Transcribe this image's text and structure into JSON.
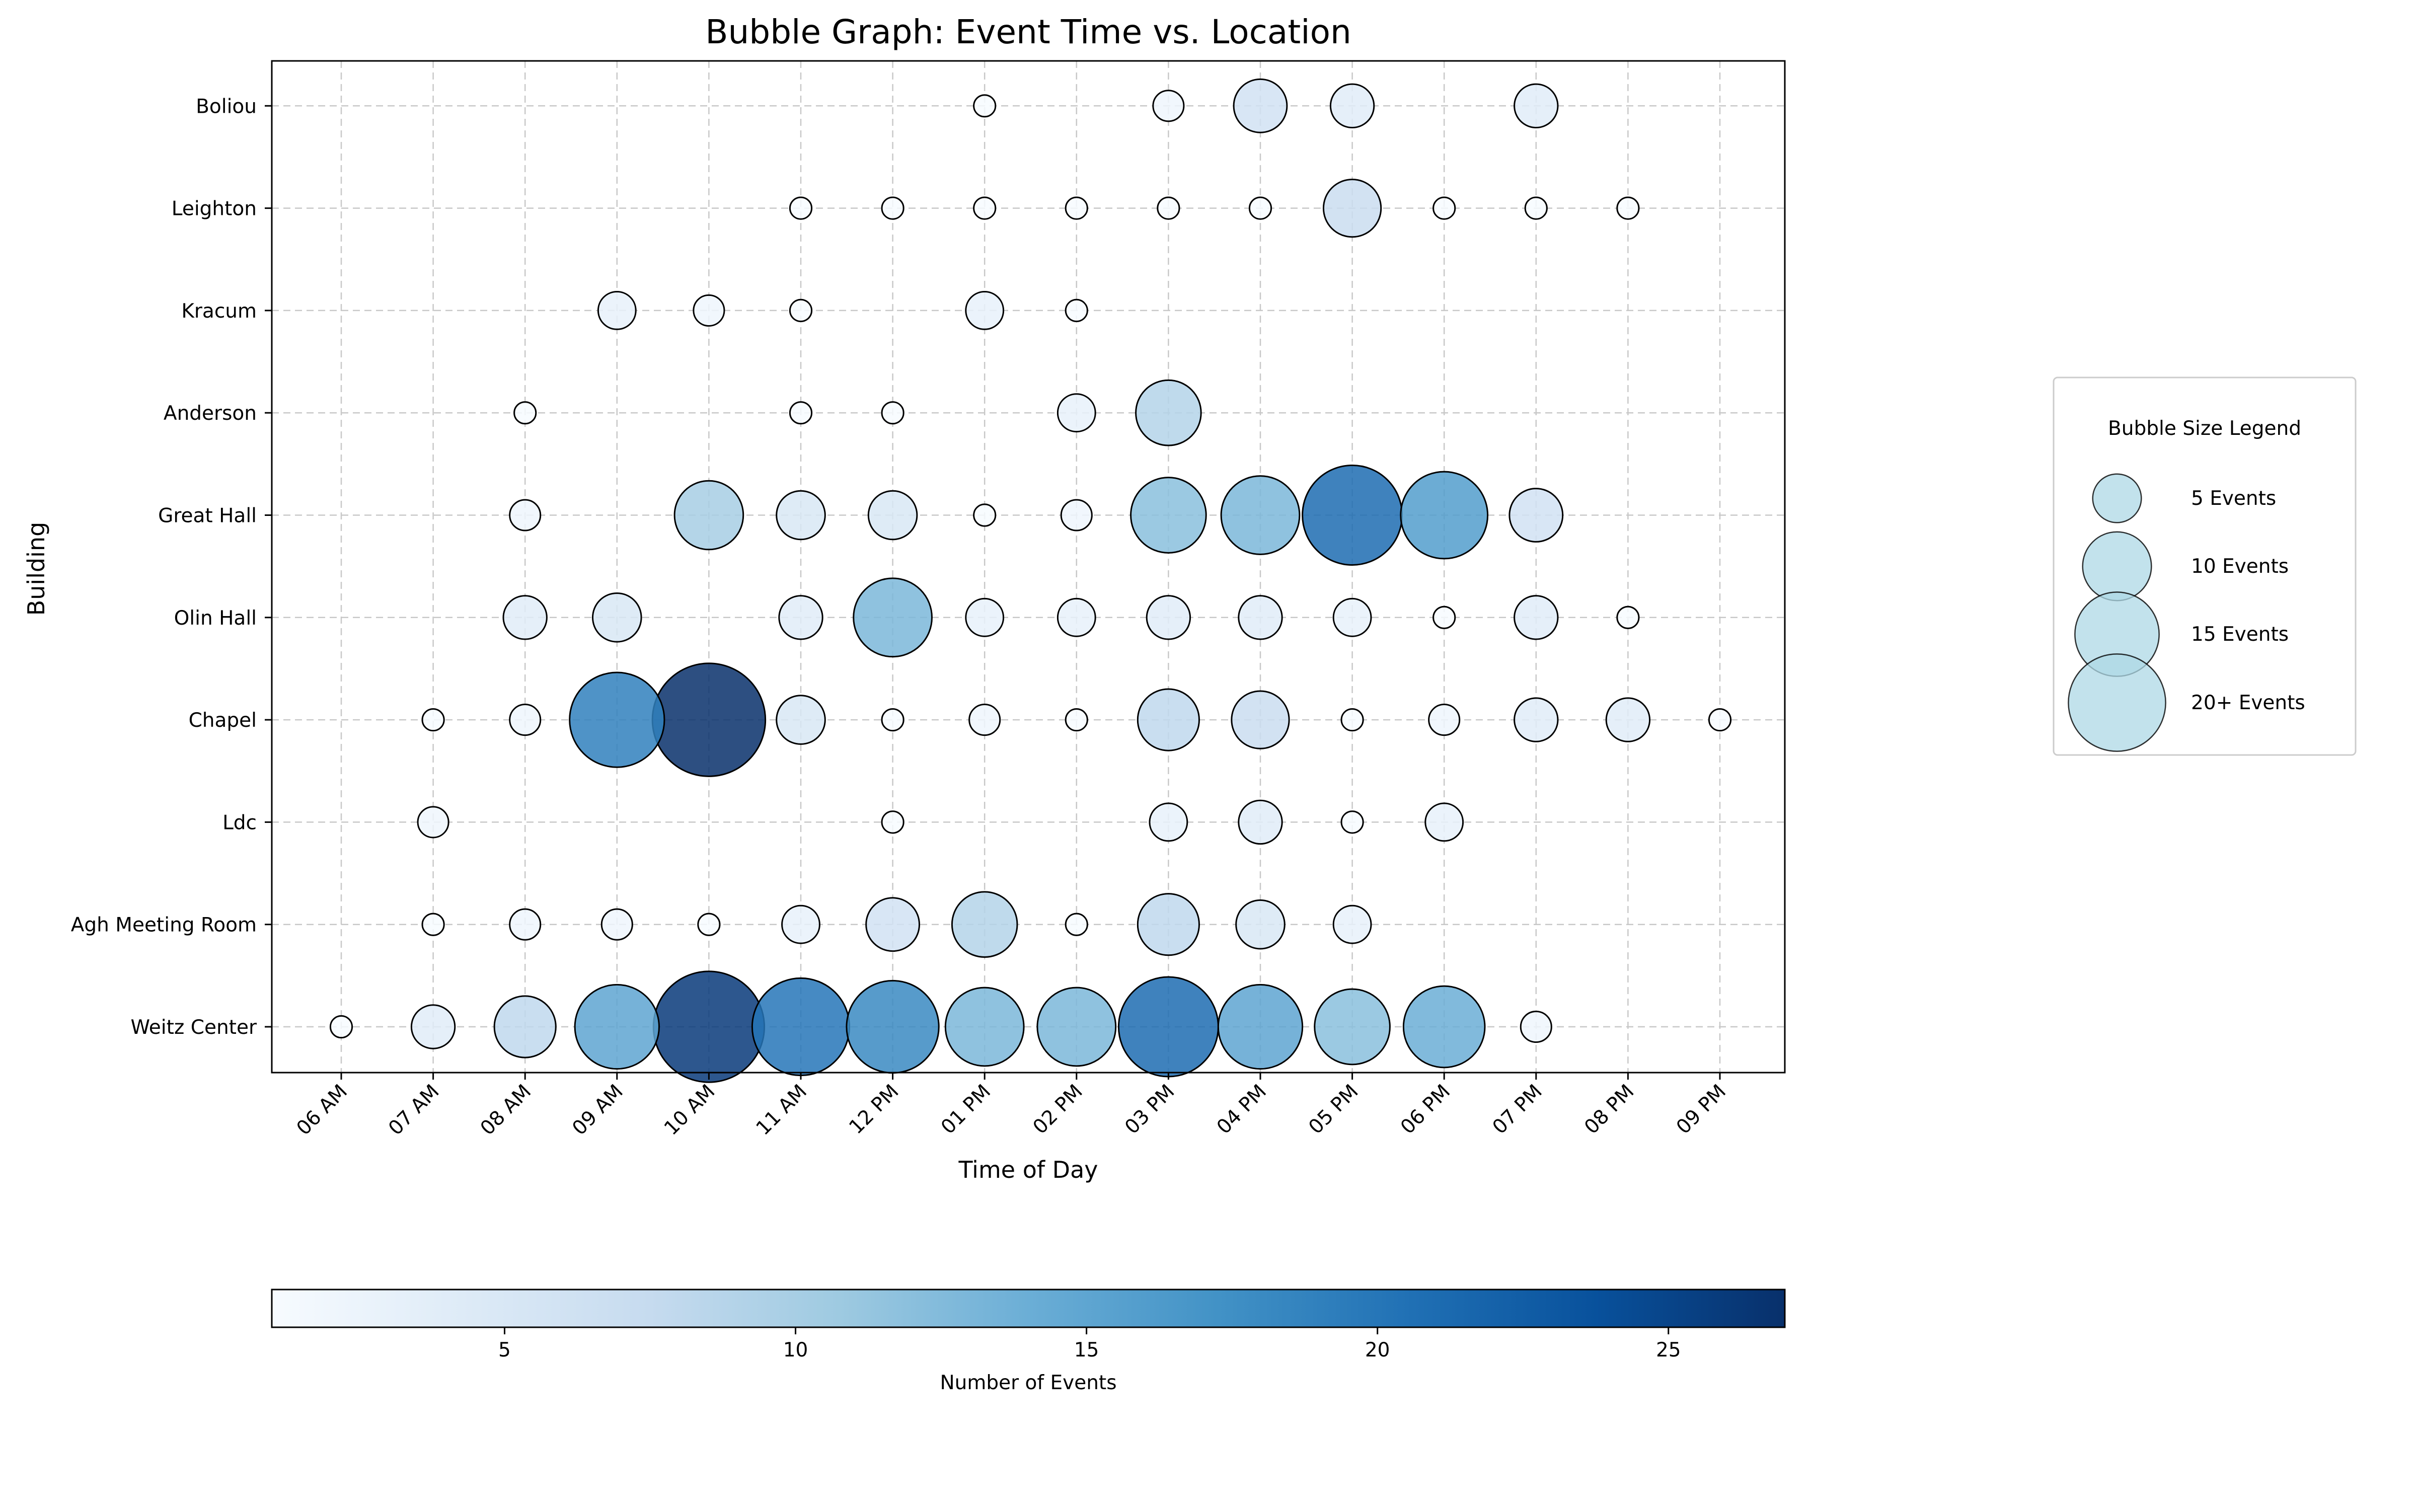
{
  "chart_data": {
    "type": "scatter",
    "title": "Bubble Graph: Event Time vs. Location",
    "xlabel": "Time of Day",
    "ylabel": "Building",
    "x_categories": [
      "06 AM",
      "07 AM",
      "08 AM",
      "09 AM",
      "10 AM",
      "11 AM",
      "12 PM",
      "01 PM",
      "02 PM",
      "03 PM",
      "04 PM",
      "05 PM",
      "06 PM",
      "07 PM",
      "08 PM",
      "09 PM"
    ],
    "y_categories": [
      "Weitz Center",
      "Agh Meeting Room",
      "Ldc",
      "Chapel",
      "Olin Hall",
      "Great Hall",
      "Anderson",
      "Kracum",
      "Leighton",
      "Boliou"
    ],
    "grid": true,
    "colormap": "Blues",
    "color_range": [
      1,
      27
    ],
    "colorbar": {
      "label": "Number of Events",
      "ticks": [
        5,
        10,
        15,
        20,
        25
      ],
      "stops": [
        "#f7fbff",
        "#deebf7",
        "#c6dbef",
        "#9ecae1",
        "#6baed6",
        "#4292c6",
        "#2171b5",
        "#08519c",
        "#08306b"
      ]
    },
    "size_legend": {
      "title": "Bubble Size Legend",
      "color": "#add8e6",
      "entries": [
        {
          "label": "5 Events",
          "value": 5
        },
        {
          "label": "10 Events",
          "value": 10
        },
        {
          "label": "15 Events",
          "value": 15
        },
        {
          "label": "20+ Events",
          "value": 20
        }
      ]
    },
    "points": [
      {
        "building": "Boliou",
        "time": "01 PM",
        "count": 1
      },
      {
        "building": "Boliou",
        "time": "03 PM",
        "count": 2
      },
      {
        "building": "Boliou",
        "time": "04 PM",
        "count": 6
      },
      {
        "building": "Boliou",
        "time": "05 PM",
        "count": 4
      },
      {
        "building": "Boliou",
        "time": "07 PM",
        "count": 4
      },
      {
        "building": "Leighton",
        "time": "11 AM",
        "count": 1
      },
      {
        "building": "Leighton",
        "time": "12 PM",
        "count": 1
      },
      {
        "building": "Leighton",
        "time": "01 PM",
        "count": 1
      },
      {
        "building": "Leighton",
        "time": "02 PM",
        "count": 1
      },
      {
        "building": "Leighton",
        "time": "03 PM",
        "count": 1
      },
      {
        "building": "Leighton",
        "time": "04 PM",
        "count": 1
      },
      {
        "building": "Leighton",
        "time": "05 PM",
        "count": 7
      },
      {
        "building": "Leighton",
        "time": "06 PM",
        "count": 1
      },
      {
        "building": "Leighton",
        "time": "07 PM",
        "count": 1
      },
      {
        "building": "Leighton",
        "time": "08 PM",
        "count": 1
      },
      {
        "building": "Kracum",
        "time": "09 AM",
        "count": 3
      },
      {
        "building": "Kracum",
        "time": "10 AM",
        "count": 2
      },
      {
        "building": "Kracum",
        "time": "11 AM",
        "count": 1
      },
      {
        "building": "Kracum",
        "time": "01 PM",
        "count": 3
      },
      {
        "building": "Kracum",
        "time": "02 PM",
        "count": 1
      },
      {
        "building": "Anderson",
        "time": "08 AM",
        "count": 1
      },
      {
        "building": "Anderson",
        "time": "11 AM",
        "count": 1
      },
      {
        "building": "Anderson",
        "time": "12 PM",
        "count": 1
      },
      {
        "building": "Anderson",
        "time": "02 PM",
        "count": 3
      },
      {
        "building": "Anderson",
        "time": "03 PM",
        "count": 9
      },
      {
        "building": "Great Hall",
        "time": "08 AM",
        "count": 2
      },
      {
        "building": "Great Hall",
        "time": "10 AM",
        "count": 10
      },
      {
        "building": "Great Hall",
        "time": "11 AM",
        "count": 5
      },
      {
        "building": "Great Hall",
        "time": "12 PM",
        "count": 5
      },
      {
        "building": "Great Hall",
        "time": "01 PM",
        "count": 1
      },
      {
        "building": "Great Hall",
        "time": "02 PM",
        "count": 2
      },
      {
        "building": "Great Hall",
        "time": "03 PM",
        "count": 12
      },
      {
        "building": "Great Hall",
        "time": "04 PM",
        "count": 13
      },
      {
        "building": "Great Hall",
        "time": "05 PM",
        "count": 21
      },
      {
        "building": "Great Hall",
        "time": "06 PM",
        "count": 16
      },
      {
        "building": "Great Hall",
        "time": "07 PM",
        "count": 6
      },
      {
        "building": "Olin Hall",
        "time": "08 AM",
        "count": 4
      },
      {
        "building": "Olin Hall",
        "time": "09 AM",
        "count": 5
      },
      {
        "building": "Olin Hall",
        "time": "11 AM",
        "count": 4
      },
      {
        "building": "Olin Hall",
        "time": "12 PM",
        "count": 13
      },
      {
        "building": "Olin Hall",
        "time": "01 PM",
        "count": 3
      },
      {
        "building": "Olin Hall",
        "time": "02 PM",
        "count": 3
      },
      {
        "building": "Olin Hall",
        "time": "03 PM",
        "count": 4
      },
      {
        "building": "Olin Hall",
        "time": "04 PM",
        "count": 4
      },
      {
        "building": "Olin Hall",
        "time": "05 PM",
        "count": 3
      },
      {
        "building": "Olin Hall",
        "time": "06 PM",
        "count": 1
      },
      {
        "building": "Olin Hall",
        "time": "07 PM",
        "count": 4
      },
      {
        "building": "Olin Hall",
        "time": "08 PM",
        "count": 1
      },
      {
        "building": "Chapel",
        "time": "07 AM",
        "count": 1
      },
      {
        "building": "Chapel",
        "time": "08 AM",
        "count": 2
      },
      {
        "building": "Chapel",
        "time": "09 AM",
        "count": 19
      },
      {
        "building": "Chapel",
        "time": "10 AM",
        "count": 27
      },
      {
        "building": "Chapel",
        "time": "11 AM",
        "count": 5
      },
      {
        "building": "Chapel",
        "time": "12 PM",
        "count": 1
      },
      {
        "building": "Chapel",
        "time": "01 PM",
        "count": 2
      },
      {
        "building": "Chapel",
        "time": "02 PM",
        "count": 1
      },
      {
        "building": "Chapel",
        "time": "03 PM",
        "count": 8
      },
      {
        "building": "Chapel",
        "time": "04 PM",
        "count": 7
      },
      {
        "building": "Chapel",
        "time": "05 PM",
        "count": 1
      },
      {
        "building": "Chapel",
        "time": "06 PM",
        "count": 2
      },
      {
        "building": "Chapel",
        "time": "07 PM",
        "count": 4
      },
      {
        "building": "Chapel",
        "time": "08 PM",
        "count": 4
      },
      {
        "building": "Chapel",
        "time": "09 PM",
        "count": 1
      },
      {
        "building": "Ldc",
        "time": "07 AM",
        "count": 2
      },
      {
        "building": "Ldc",
        "time": "12 PM",
        "count": 1
      },
      {
        "building": "Ldc",
        "time": "03 PM",
        "count": 3
      },
      {
        "building": "Ldc",
        "time": "04 PM",
        "count": 4
      },
      {
        "building": "Ldc",
        "time": "05 PM",
        "count": 1
      },
      {
        "building": "Ldc",
        "time": "06 PM",
        "count": 3
      },
      {
        "building": "Agh Meeting Room",
        "time": "07 AM",
        "count": 1
      },
      {
        "building": "Agh Meeting Room",
        "time": "08 AM",
        "count": 2
      },
      {
        "building": "Agh Meeting Room",
        "time": "09 AM",
        "count": 2
      },
      {
        "building": "Agh Meeting Room",
        "time": "10 AM",
        "count": 1
      },
      {
        "building": "Agh Meeting Room",
        "time": "11 AM",
        "count": 3
      },
      {
        "building": "Agh Meeting Room",
        "time": "12 PM",
        "count": 6
      },
      {
        "building": "Agh Meeting Room",
        "time": "01 PM",
        "count": 9
      },
      {
        "building": "Agh Meeting Room",
        "time": "02 PM",
        "count": 1
      },
      {
        "building": "Agh Meeting Room",
        "time": "03 PM",
        "count": 8
      },
      {
        "building": "Agh Meeting Room",
        "time": "04 PM",
        "count": 5
      },
      {
        "building": "Agh Meeting Room",
        "time": "05 PM",
        "count": 3
      },
      {
        "building": "Weitz Center",
        "time": "06 AM",
        "count": 1
      },
      {
        "building": "Weitz Center",
        "time": "07 AM",
        "count": 4
      },
      {
        "building": "Weitz Center",
        "time": "08 AM",
        "count": 8
      },
      {
        "building": "Weitz Center",
        "time": "09 AM",
        "count": 15
      },
      {
        "building": "Weitz Center",
        "time": "10 AM",
        "count": 26
      },
      {
        "building": "Weitz Center",
        "time": "11 AM",
        "count": 20
      },
      {
        "building": "Weitz Center",
        "time": "12 PM",
        "count": 18
      },
      {
        "building": "Weitz Center",
        "time": "01 PM",
        "count": 13
      },
      {
        "building": "Weitz Center",
        "time": "02 PM",
        "count": 13
      },
      {
        "building": "Weitz Center",
        "time": "03 PM",
        "count": 21
      },
      {
        "building": "Weitz Center",
        "time": "04 PM",
        "count": 15
      },
      {
        "building": "Weitz Center",
        "time": "05 PM",
        "count": 12
      },
      {
        "building": "Weitz Center",
        "time": "06 PM",
        "count": 14
      },
      {
        "building": "Weitz Center",
        "time": "07 PM",
        "count": 2
      }
    ]
  }
}
